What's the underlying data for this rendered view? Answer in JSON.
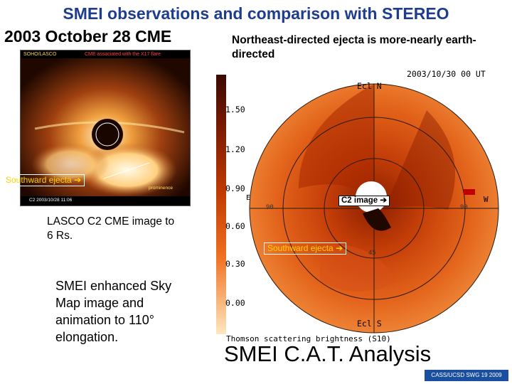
{
  "slide": {
    "title": "SMEI observations and comparison with STEREO",
    "subtitle": "2003 October 28 CME",
    "note": "Northeast-directed ejecta is more-nearly earth-directed",
    "lasco_caption": "LASCO C2 CME image to 6 Rs.",
    "smei_caption": "SMEI enhanced Sky Map image and animation to 110° elongation.",
    "cat_title": "SMEI C.A.T. Analysis",
    "credit": "CASS/UCSD SWG 19 2009"
  },
  "lasco_image": {
    "header_left": "SOHO/LASCO",
    "header_right": "CME associated with the X17 flare",
    "prominence_label": "prominence",
    "timestamp": "C2 2003/10/28 11:06",
    "tag": "Southward ejecta"
  },
  "sky_map": {
    "date": "2003/10/30 00 UT",
    "top_label": "Ecl N",
    "bottom_label": "Ecl S",
    "east_label": "E",
    "west_label": "W",
    "colorbar_label": "Thomson scattering brightness (S10)",
    "scale_ticks": [
      "1.50",
      "1.20",
      "0.90",
      "0.60",
      "0.30",
      "0.00"
    ],
    "c2_tag": "C2 image",
    "southward_tag": "Southward ejecta",
    "angle_left": "90",
    "angle_right": "90",
    "angle_bottom": "45"
  },
  "colors": {
    "title": "#1f3d8f",
    "tag_text": "#ffd200",
    "credit_bg": "#1a4fa0"
  }
}
